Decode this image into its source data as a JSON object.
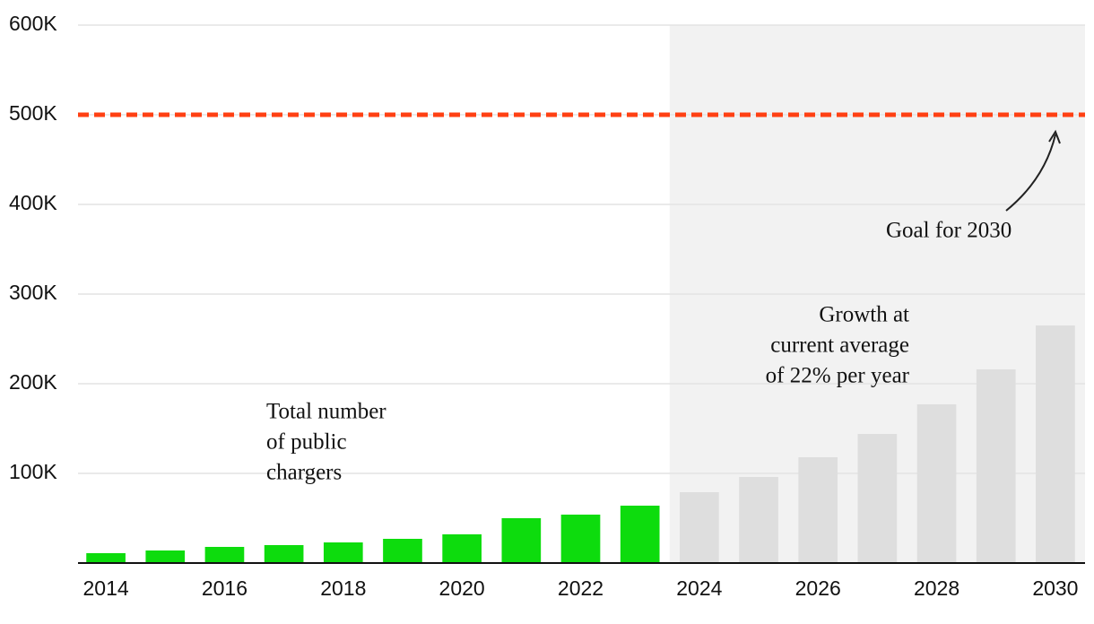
{
  "chart_data": {
    "type": "bar",
    "categories": [
      "2014",
      null,
      "2016",
      null,
      "2018",
      null,
      "2020",
      null,
      "2022",
      null,
      "2024",
      null,
      "2026",
      null,
      "2028",
      null,
      "2030"
    ],
    "values": [
      11000,
      14000,
      18000,
      20000,
      23000,
      27000,
      32000,
      50000,
      54000,
      64000,
      79000,
      96000,
      118000,
      144000,
      177000,
      216000,
      265000
    ],
    "colors": [
      "#0ddc0d",
      "#0ddc0d",
      "#0ddc0d",
      "#0ddc0d",
      "#0ddc0d",
      "#0ddc0d",
      "#0ddc0d",
      "#0ddc0d",
      "#0ddc0d",
      "#0ddc0d",
      "#dedede",
      "#dedede",
      "#dedede",
      "#dedede",
      "#dedede",
      "#dedede",
      "#dedede"
    ],
    "ylim": [
      0,
      600000
    ],
    "yticks": [
      {
        "value": 100000,
        "label": "100K"
      },
      {
        "value": 200000,
        "label": "200K"
      },
      {
        "value": 300000,
        "label": "300K"
      },
      {
        "value": 400000,
        "label": "400K"
      },
      {
        "value": 500000,
        "label": "500K"
      },
      {
        "value": 600000,
        "label": "600K"
      }
    ],
    "grid": true,
    "goal": {
      "value": 500000,
      "color": "#ff4013",
      "label": "Goal for 2030"
    },
    "annotations": [
      {
        "lines": [
          "Total number",
          "of public",
          "chargers"
        ]
      },
      {
        "lines": [
          "Growth at",
          "current average",
          "of 22% per year"
        ]
      }
    ]
  }
}
